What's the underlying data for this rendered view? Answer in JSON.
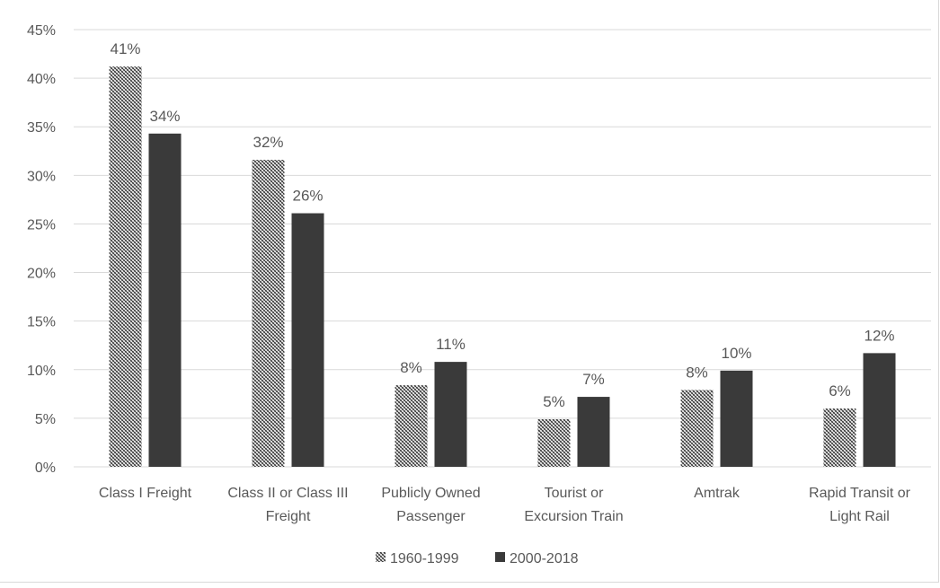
{
  "chart_data": {
    "type": "bar",
    "title": "",
    "xlabel": "",
    "ylabel": "",
    "ylim": [
      0,
      45
    ],
    "y_ticks": [
      "0%",
      "5%",
      "10%",
      "15%",
      "20%",
      "25%",
      "30%",
      "35%",
      "40%",
      "45%"
    ],
    "y_tick_values": [
      0,
      5,
      10,
      15,
      20,
      25,
      30,
      35,
      40,
      45
    ],
    "grid": true,
    "legend_position": "bottom",
    "categories": [
      [
        "Class I Freight"
      ],
      [
        "Class II or Class III",
        "Freight"
      ],
      [
        "Publicly Owned",
        "Passenger"
      ],
      [
        "Tourist or",
        "Excursion Train"
      ],
      [
        "Amtrak"
      ],
      [
        "Rapid Transit or",
        "Light Rail"
      ]
    ],
    "series": [
      {
        "name": "1960-1999",
        "values": [
          41.2,
          31.6,
          8.4,
          4.9,
          7.9,
          6.0
        ],
        "labels": [
          "41%",
          "32%",
          "8%",
          "5%",
          "8%",
          "6%"
        ],
        "fill": "pattern"
      },
      {
        "name": "2000-2018",
        "values": [
          34.3,
          26.1,
          10.8,
          7.2,
          9.9,
          11.7
        ],
        "labels": [
          "34%",
          "26%",
          "11%",
          "7%",
          "10%",
          "12%"
        ],
        "fill": "#3a3a3a"
      }
    ],
    "colors": {
      "solid": "#3a3a3a",
      "grid": "#d9d9d9",
      "text": "#595959"
    }
  }
}
